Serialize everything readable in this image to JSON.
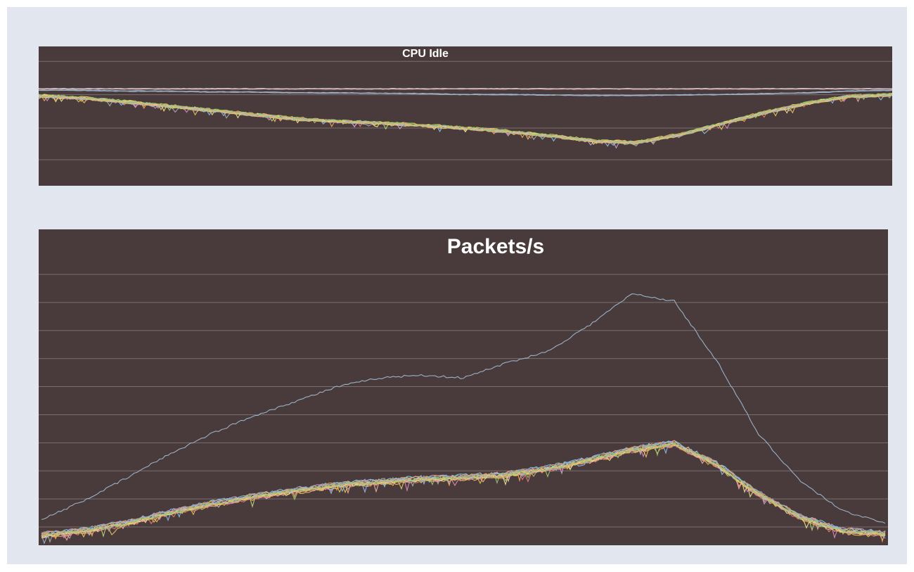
{
  "colors": {
    "background": "#e1e6ef",
    "plot_bg": "#493b3b",
    "grid": "#7a6e6e",
    "outlier": "#9fb6cc",
    "series_palette": [
      "#e6c35a",
      "#93c56b",
      "#e07a7a",
      "#c7a6e0",
      "#7fc6d9",
      "#f0a060",
      "#b9d27a",
      "#d98cc0",
      "#a9a9a9",
      "#f2e08a",
      "#8fb8e8",
      "#e8b0a0"
    ]
  },
  "chart_data": [
    {
      "type": "line",
      "title": "CPU Idle",
      "xlabel": "",
      "ylabel": "",
      "grid": true,
      "legend": "none",
      "x": [
        0,
        0.05,
        0.1,
        0.15,
        0.2,
        0.25,
        0.3,
        0.35,
        0.4,
        0.45,
        0.5,
        0.55,
        0.6,
        0.65,
        0.7,
        0.75,
        0.8,
        0.85,
        0.9,
        0.95,
        1
      ],
      "series": [
        {
          "group": "flat-top",
          "values": [
            97,
            97,
            97,
            97,
            97,
            97,
            97,
            97,
            97,
            97,
            97,
            97,
            97,
            97,
            97,
            97,
            97,
            97,
            97,
            97,
            97
          ]
        },
        {
          "group": "flat-second",
          "values": [
            95,
            95,
            94,
            94,
            93,
            93,
            92,
            92,
            91.5,
            91,
            90,
            90,
            89.5,
            89,
            89,
            89.5,
            90,
            91,
            92,
            94,
            95
          ]
        },
        {
          "group": "bundle",
          "values": [
            89,
            86,
            82,
            77,
            72,
            67,
            62,
            59,
            57,
            54,
            51,
            47,
            42,
            36,
            34,
            43,
            56,
            69,
            80,
            88,
            90
          ]
        }
      ],
      "ylim": [
        0,
        130
      ],
      "gridlines": [
        14,
        51,
        90,
        129
      ]
    },
    {
      "type": "line",
      "title": "Packets/s",
      "xlabel": "",
      "ylabel": "",
      "grid": true,
      "legend": "none",
      "x": [
        0,
        0.05,
        0.1,
        0.15,
        0.2,
        0.25,
        0.3,
        0.35,
        0.4,
        0.45,
        0.5,
        0.55,
        0.6,
        0.65,
        0.7,
        0.75,
        0.8,
        0.85,
        0.9,
        0.95,
        1
      ],
      "series": [
        {
          "group": "outlier",
          "values": [
            12,
            25,
            40,
            56,
            70,
            82,
            92,
            102,
            108,
            110,
            108,
            118,
            126,
            144,
            165,
            160,
            120,
            70,
            38,
            18,
            10
          ]
        },
        {
          "group": "bundle",
          "values": [
            2,
            5,
            10,
            17,
            23,
            28,
            32,
            36,
            38,
            40,
            41,
            43,
            47,
            53,
            60,
            64,
            50,
            30,
            14,
            5,
            3
          ]
        }
      ],
      "ylim": [
        0,
        190
      ]
    }
  ]
}
